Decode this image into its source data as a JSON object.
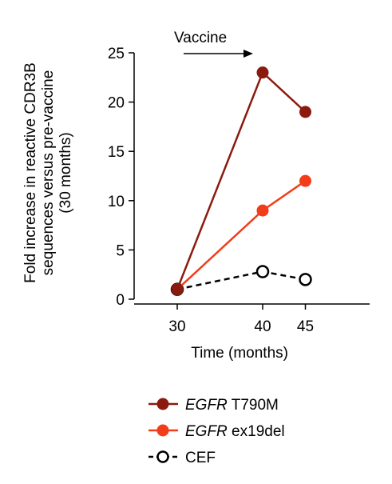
{
  "chart_data": {
    "type": "line",
    "x": [
      30,
      40,
      45
    ],
    "xlabel": "Time (months)",
    "ylabel": [
      "Fold increase in reactive CDR3B",
      "sequences versus pre-vaccine",
      "(30 months)"
    ],
    "ylim": [
      0,
      25
    ],
    "yticks": [
      0,
      5,
      10,
      15,
      20,
      25
    ],
    "xticks": [
      30,
      40,
      45
    ],
    "grid": false,
    "legend_position": "bottom",
    "annotation": {
      "label": "Vaccine",
      "from_x": 30,
      "to_x": 40
    },
    "series": [
      {
        "name_italic": "EGFR",
        "name_rest": " T790M",
        "color": "#8b1a0e",
        "marker": "filled-circle",
        "line": "solid",
        "values": [
          1,
          23,
          19
        ]
      },
      {
        "name_italic": "EGFR",
        "name_rest": " ex19del",
        "color": "#f23c1a",
        "marker": "filled-circle",
        "line": "solid",
        "values": [
          1,
          9,
          12
        ]
      },
      {
        "name_italic": "",
        "name_rest": "CEF",
        "color": "#000000",
        "marker": "open-circle",
        "line": "dashed",
        "values": [
          1,
          2.8,
          2
        ]
      }
    ]
  }
}
